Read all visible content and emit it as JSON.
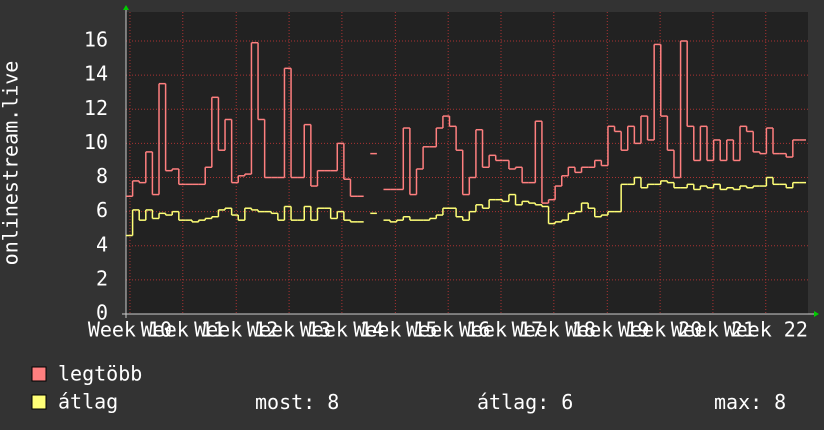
{
  "chart_data": {
    "type": "step-line",
    "ylabel": "onlinestream.live",
    "x": [
      0,
      1,
      2,
      3,
      4,
      5,
      6,
      7,
      8,
      9,
      10,
      11,
      12,
      13,
      14,
      15,
      16,
      17,
      18,
      19,
      20,
      21,
      22,
      23,
      24,
      25,
      26,
      27,
      28,
      29,
      30,
      31,
      32,
      33,
      34,
      35,
      36,
      37,
      38,
      39,
      40,
      41,
      42,
      43,
      44,
      45,
      46,
      47,
      48,
      49,
      50,
      51,
      52,
      53,
      54,
      55,
      56,
      57,
      58,
      59,
      60,
      61,
      62,
      63,
      64,
      65,
      66,
      67,
      68,
      69,
      70,
      71,
      72,
      73,
      74,
      75,
      76,
      77,
      78,
      79,
      80,
      81,
      82,
      83,
      84,
      85,
      86,
      87,
      88,
      89,
      90,
      91,
      92,
      93,
      94,
      95,
      96,
      97,
      98,
      99,
      100,
      101,
      102
    ],
    "series": [
      {
        "name": "legtöbb",
        "color": "#ff7f7f",
        "values": [
          6.9,
          7.8,
          7.7,
          9.5,
          7.0,
          13.5,
          8.4,
          8.5,
          7.6,
          7.6,
          7.6,
          7.6,
          8.6,
          12.7,
          9.6,
          11.4,
          7.7,
          8.1,
          8.2,
          15.9,
          11.4,
          8.0,
          8.0,
          8.0,
          14.4,
          8.0,
          8.0,
          11.1,
          7.5,
          8.4,
          8.4,
          8.4,
          10.0,
          7.9,
          6.9,
          6.9,
          null,
          9.4,
          null,
          7.3,
          7.3,
          7.3,
          10.9,
          7.0,
          8.5,
          9.8,
          9.8,
          10.9,
          11.6,
          11.0,
          9.6,
          7.0,
          8.0,
          10.8,
          8.6,
          9.3,
          9.0,
          9.0,
          8.5,
          8.6,
          7.7,
          7.7,
          11.3,
          6.5,
          6.7,
          7.5,
          8.1,
          8.6,
          8.3,
          8.6,
          8.6,
          9.0,
          8.7,
          11.0,
          10.7,
          9.6,
          11.0,
          10.0,
          11.6,
          10.2,
          15.8,
          11.6,
          9.6,
          8.0,
          16.0,
          11.0,
          9.0,
          11.0,
          9.0,
          10.2,
          9.0,
          10.2,
          9.0,
          11.0,
          10.7,
          9.5,
          9.4,
          10.9,
          9.4,
          9.4,
          9.2,
          10.2,
          10.2
        ]
      },
      {
        "name": "átlag",
        "color": "#ffff77",
        "values": [
          4.6,
          6.1,
          5.5,
          6.1,
          5.6,
          5.9,
          5.8,
          6.0,
          5.5,
          5.5,
          5.4,
          5.5,
          5.6,
          5.7,
          6.1,
          6.2,
          5.8,
          5.5,
          6.2,
          6.1,
          6.0,
          6.0,
          5.9,
          5.5,
          6.3,
          5.5,
          5.5,
          6.3,
          5.5,
          6.2,
          6.2,
          5.6,
          6.0,
          5.5,
          5.4,
          5.4,
          null,
          5.9,
          null,
          5.5,
          5.4,
          5.5,
          5.7,
          5.5,
          5.5,
          5.5,
          5.6,
          5.8,
          6.2,
          6.2,
          5.7,
          5.5,
          6.0,
          6.4,
          6.2,
          6.7,
          6.7,
          6.6,
          7.0,
          6.4,
          6.6,
          6.5,
          6.4,
          6.3,
          5.3,
          5.4,
          5.5,
          5.9,
          6.0,
          6.5,
          6.2,
          5.7,
          5.8,
          6.0,
          6.0,
          7.6,
          7.6,
          8.0,
          7.4,
          7.6,
          7.6,
          7.8,
          7.7,
          7.4,
          7.4,
          7.6,
          7.3,
          7.5,
          7.4,
          7.6,
          7.3,
          7.4,
          7.3,
          7.5,
          7.4,
          7.5,
          7.5,
          8.0,
          7.6,
          7.6,
          7.4,
          7.7,
          7.7
        ]
      }
    ],
    "xlim": [
      0,
      103.3
    ],
    "xticks": [
      {
        "value": 0.6,
        "label": "Week 10"
      },
      {
        "value": 8.6,
        "label": "Week 11"
      },
      {
        "value": 16.7,
        "label": "Week 12"
      },
      {
        "value": 24.7,
        "label": "Week 13"
      },
      {
        "value": 32.7,
        "label": "Week 14"
      },
      {
        "value": 40.8,
        "label": "Week 15"
      },
      {
        "value": 48.8,
        "label": "Week 16"
      },
      {
        "value": 56.8,
        "label": "Week 17"
      },
      {
        "value": 64.8,
        "label": "Week 18"
      },
      {
        "value": 72.9,
        "label": "Week 19"
      },
      {
        "value": 80.9,
        "label": "Week 20"
      },
      {
        "value": 88.9,
        "label": "Week 21"
      },
      {
        "value": 96.9,
        "label": "Week 22"
      }
    ],
    "ylim": [
      0,
      17.7
    ],
    "yticks": [
      0,
      2,
      4,
      6,
      8,
      10,
      12,
      14,
      16
    ],
    "grid": true,
    "stats": [
      {
        "label": "most:",
        "value": 8
      },
      {
        "label": "átlag:",
        "value": 6
      },
      {
        "label": "max:",
        "value": 8
      }
    ]
  }
}
